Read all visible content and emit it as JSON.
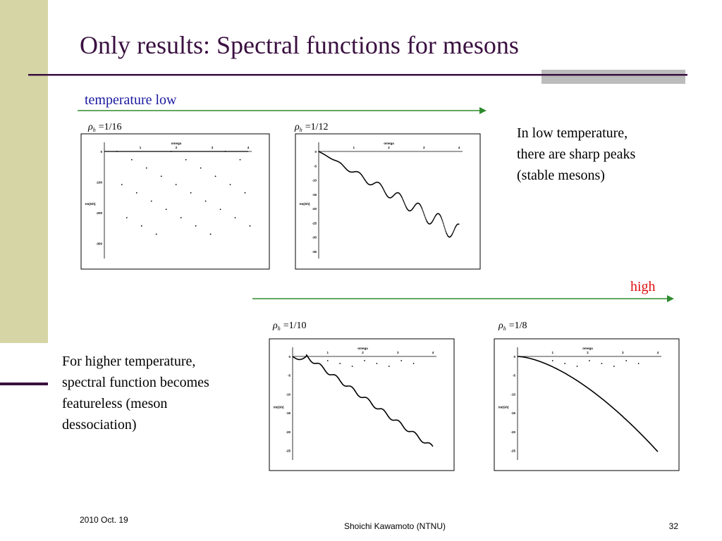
{
  "header": {
    "title": "Only results: Spectral functions for mesons"
  },
  "top_arrow": {
    "label": "temperature low"
  },
  "bottom_arrow": {
    "label": "high"
  },
  "notes": {
    "right": [
      "In low temperature,",
      "there are sharp peaks",
      "(stable mesons)"
    ],
    "left": [
      "For higher temperature,",
      "spectral function becomes",
      "featureless (meson",
      "dessociation)"
    ]
  },
  "plots": [
    {
      "symbol": "ρ",
      "sub": "h",
      "rhs": "=1/16",
      "xlabel": "omega",
      "ylabel": "Im(Gh)",
      "xticks": [
        "1",
        "2",
        "3",
        "4"
      ],
      "yticks": [
        "0",
        "-100",
        "-200",
        "-300"
      ]
    },
    {
      "symbol": "ρ",
      "sub": "h",
      "rhs": "=1/12",
      "xlabel": "omega",
      "ylabel": "Im(Gh)",
      "xticks": [
        "1",
        "2",
        "3",
        "4"
      ],
      "yticks": [
        "0",
        "-5",
        "-10",
        "-15",
        "-20",
        "-25",
        "-30",
        "-35"
      ]
    },
    {
      "symbol": "ρ",
      "sub": "h",
      "rhs": "=1/10",
      "xlabel": "omega",
      "ylabel": "Im(Gh)",
      "xticks": [
        "1",
        "2",
        "3",
        "4"
      ],
      "yticks": [
        "0",
        "-5",
        "-10",
        "-15",
        "-20",
        "-25"
      ]
    },
    {
      "symbol": "ρ",
      "sub": "h",
      "rhs": "=1/8",
      "xlabel": "omega",
      "ylabel": "Im(Gh)",
      "xticks": [
        "1",
        "2",
        "3",
        "4"
      ],
      "yticks": [
        "0",
        "-5",
        "-10",
        "-15",
        "-20",
        "-25"
      ]
    }
  ],
  "footer": {
    "date": "2010 Oct. 19",
    "author": "Shoichi Kawamoto (NTNU)",
    "page": "32"
  }
}
